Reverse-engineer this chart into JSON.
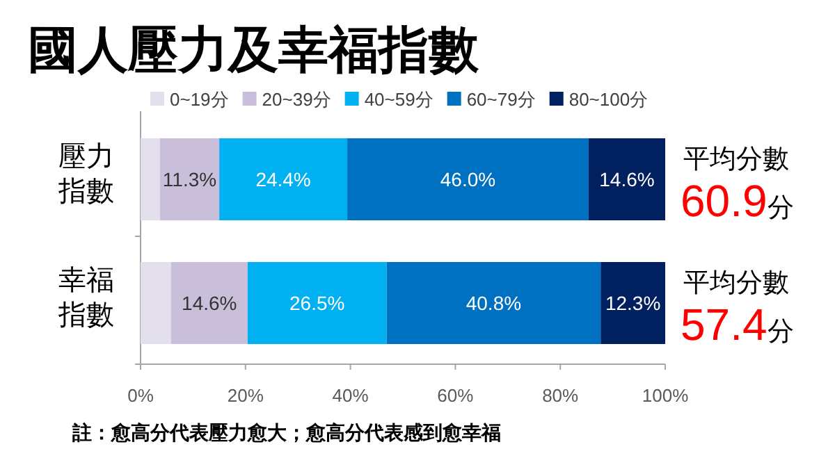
{
  "chart_data": {
    "type": "bar",
    "orientation": "horizontal",
    "stacked": true,
    "title": "國人壓力及幸福指數",
    "categories": [
      "壓力指數",
      "幸福指數"
    ],
    "series": [
      {
        "name": "0~19分",
        "color": "#e3dfec",
        "values": [
          3.7,
          5.8
        ],
        "value_labels": [
          null,
          null
        ]
      },
      {
        "name": "20~39分",
        "color": "#c9bfdb",
        "values": [
          11.3,
          14.6
        ],
        "value_labels": [
          "11.3%",
          "14.6%"
        ]
      },
      {
        "name": "40~59分",
        "color": "#00b0f0",
        "values": [
          24.4,
          26.5
        ],
        "value_labels": [
          "24.4%",
          "26.5%"
        ]
      },
      {
        "name": "60~79分",
        "color": "#0070c0",
        "values": [
          46.0,
          40.8
        ],
        "value_labels": [
          "46.0%",
          "40.8%"
        ]
      },
      {
        "name": "80~100分",
        "color": "#002060",
        "values": [
          14.6,
          12.3
        ],
        "value_labels": [
          "14.6%",
          "12.3%"
        ]
      }
    ],
    "xlim": [
      0,
      100
    ],
    "xticks": [
      {
        "value": 0,
        "label": "0%"
      },
      {
        "value": 20,
        "label": "20%"
      },
      {
        "value": 40,
        "label": "40%"
      },
      {
        "value": 60,
        "label": "60%"
      },
      {
        "value": 80,
        "label": "80%"
      },
      {
        "value": 100,
        "label": "100%"
      }
    ],
    "legend": "top",
    "grid": false,
    "annotations": [
      "平均分數",
      "60.9分",
      "平均分數",
      "57.4分",
      "註：愈高分代表壓力愈大；愈高分代表感到愈幸福"
    ]
  }
}
